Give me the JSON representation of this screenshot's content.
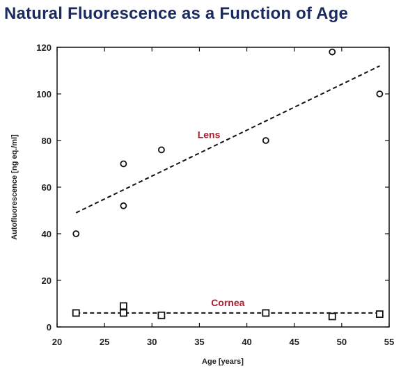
{
  "colors": {
    "title": "#1a2a5e",
    "annotation": "#b01c2e",
    "ink": "#111111"
  },
  "chart_data": {
    "type": "scatter",
    "title": "Natural Fluorescence as a Function of Age",
    "xlabel": "Age [years]",
    "ylabel": "Autofluorescence [ng eq./ml]",
    "xlim": [
      20,
      55
    ],
    "ylim": [
      0,
      120
    ],
    "xticks": [
      20,
      25,
      30,
      35,
      40,
      45,
      50,
      55
    ],
    "yticks": [
      0,
      20,
      40,
      60,
      80,
      100,
      120
    ],
    "grid": false,
    "series": [
      {
        "name": "Lens",
        "marker": "circle",
        "x": [
          22,
          27,
          27,
          31,
          42,
          49,
          54
        ],
        "y": [
          40,
          70,
          52,
          76,
          80,
          118,
          100
        ],
        "trendline": {
          "x": [
            22,
            54
          ],
          "y": [
            49,
            112
          ]
        }
      },
      {
        "name": "Cornea",
        "marker": "square",
        "x": [
          22,
          27,
          27,
          31,
          42,
          49,
          54
        ],
        "y": [
          6,
          9,
          6,
          5,
          6,
          4.5,
          5.5
        ],
        "trendline": {
          "x": [
            22,
            54
          ],
          "y": [
            6,
            6
          ]
        }
      }
    ],
    "annotations": [
      {
        "text": "Lens",
        "x": 36,
        "y": 81
      },
      {
        "text": "Cornea",
        "x": 38,
        "y": 9
      }
    ]
  }
}
